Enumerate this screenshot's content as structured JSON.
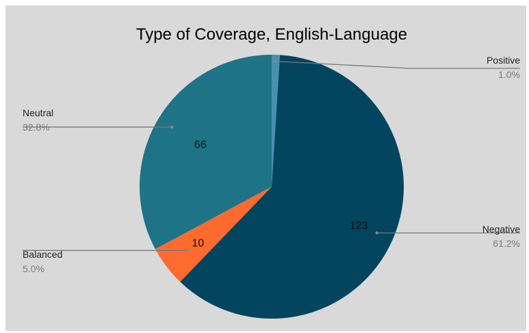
{
  "chart_data": {
    "type": "pie",
    "title": "Type of Coverage, English-Language",
    "slices": [
      {
        "name": "Positive",
        "value": 2,
        "percent": "1.0%",
        "color": "#4a8fb0",
        "value_label": ""
      },
      {
        "name": "Negative",
        "value": 123,
        "percent": "61.2%",
        "color": "#03445f",
        "value_label": "123"
      },
      {
        "name": "Balanced",
        "value": 10,
        "percent": "5.0%",
        "color": "#ff6a2f",
        "value_label": "10"
      },
      {
        "name": "Neutral",
        "value": 66,
        "percent": "32.8%",
        "color": "#1e7486",
        "value_label": "66"
      }
    ],
    "start_angle": "12 o'clock, clockwise",
    "legend": "none (callout labels beside slices)"
  }
}
